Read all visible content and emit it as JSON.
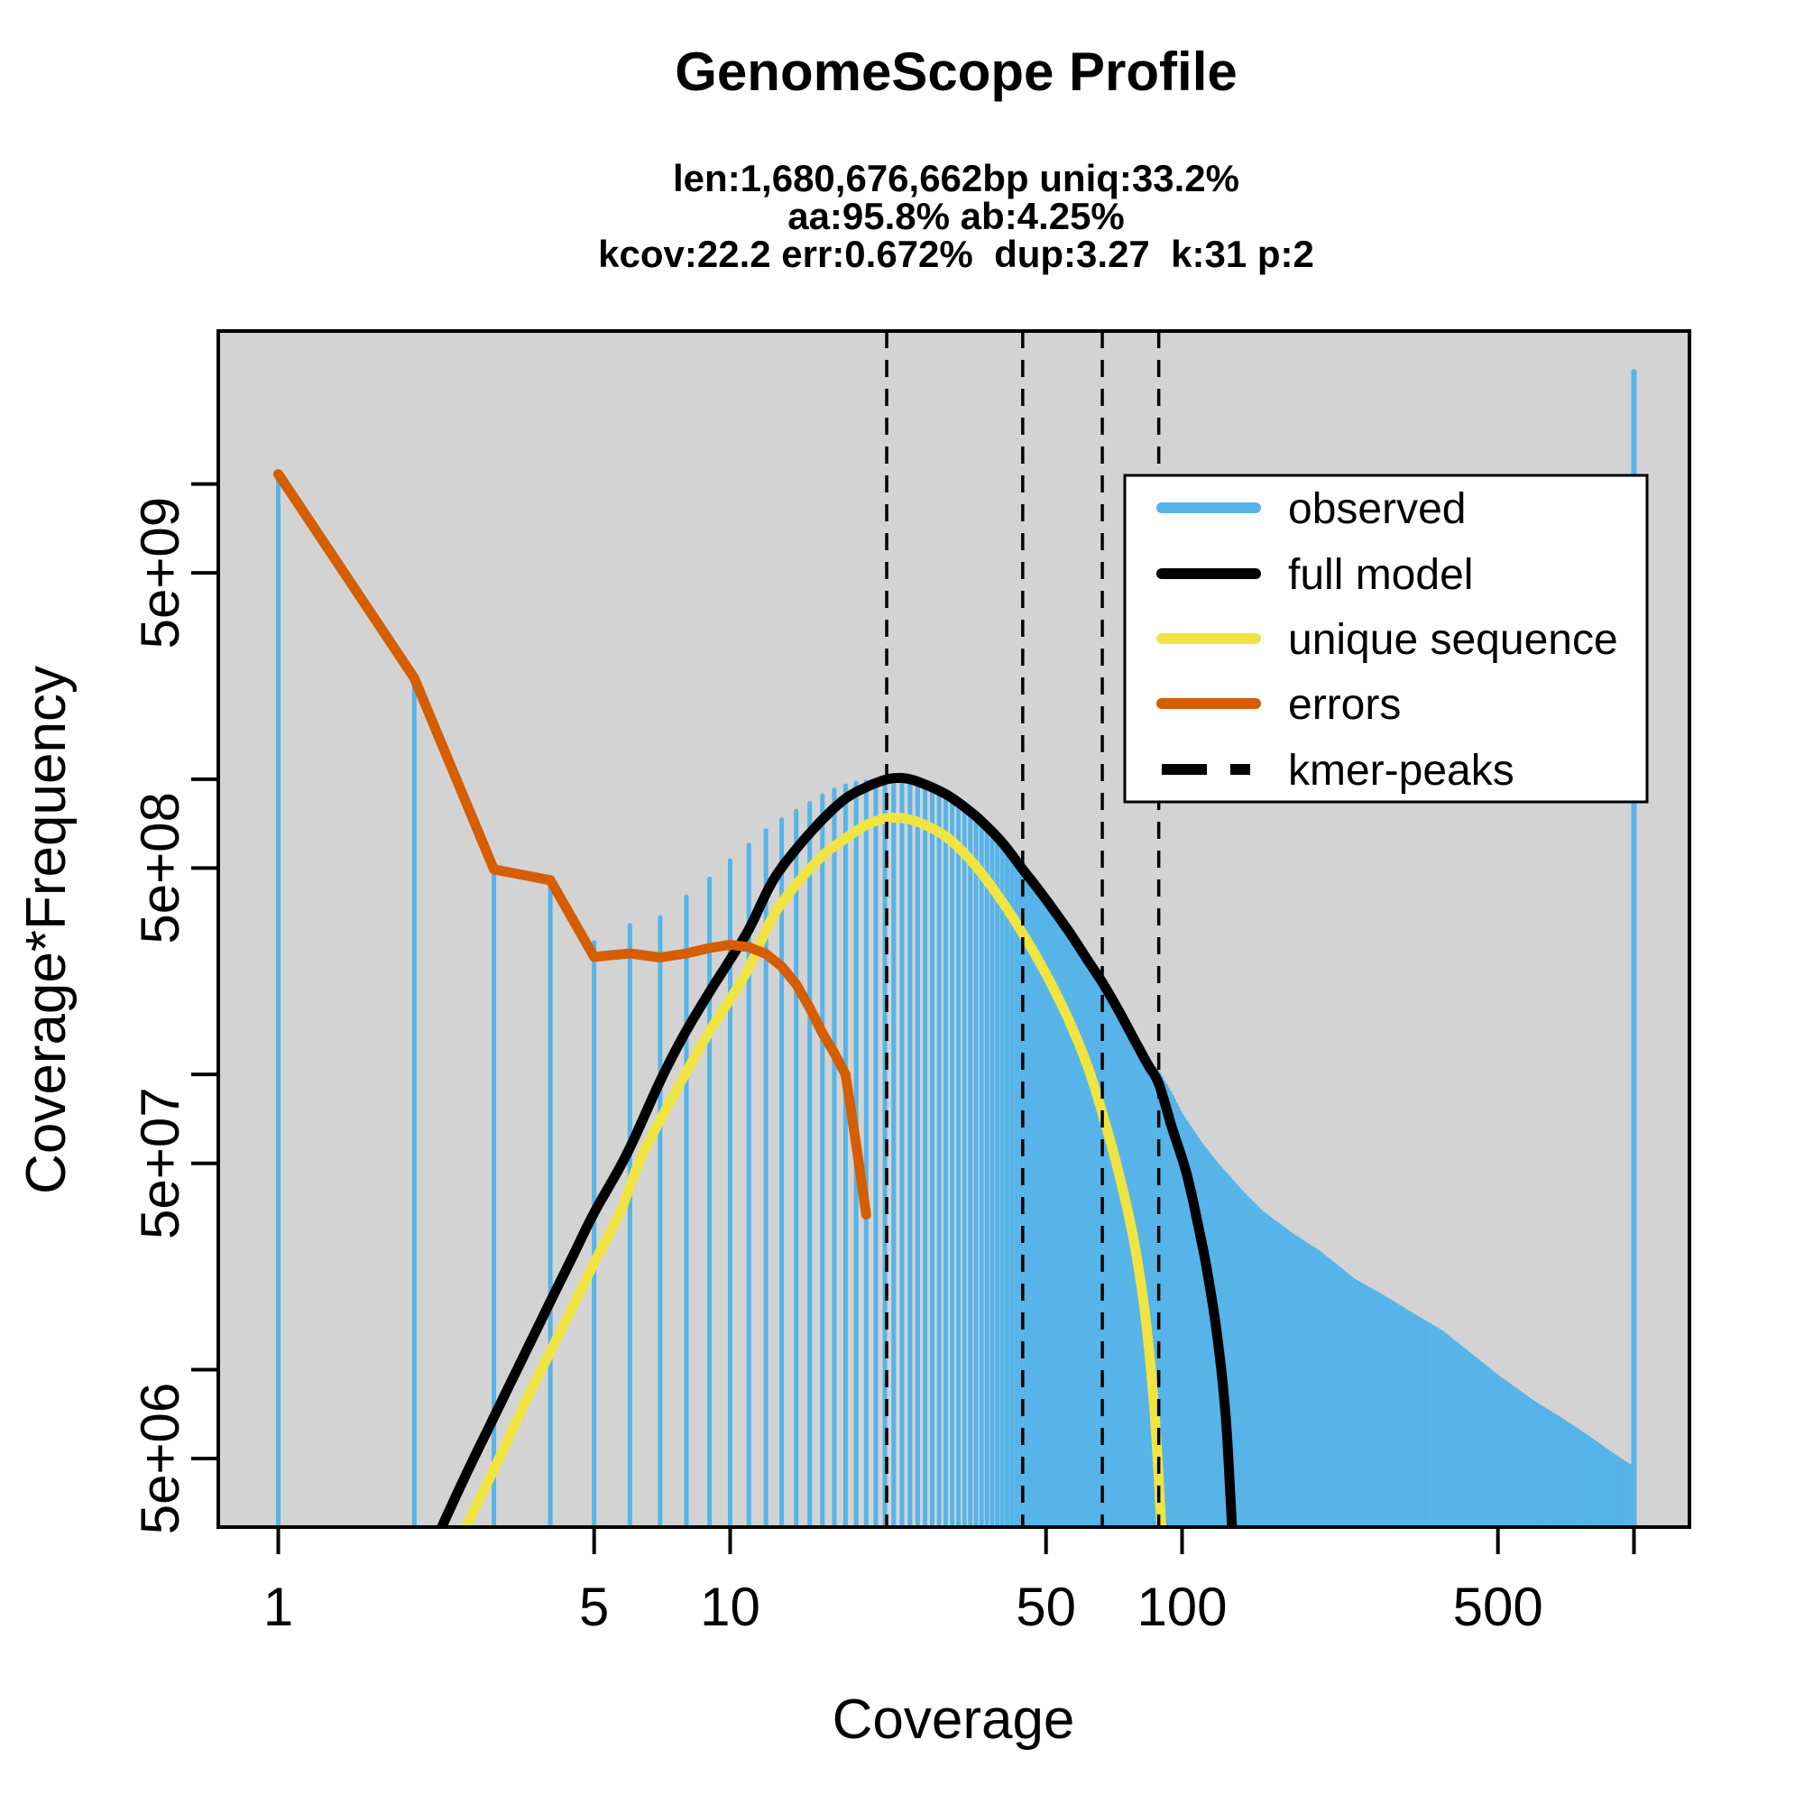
{
  "title": "GenomeScope Profile",
  "subtitle_lines": [
    "len:1,680,676,662bp uniq:33.2%",
    "aa:95.8% ab:4.25%",
    "kcov:22.2 err:0.672%  dup:3.27  k:31 p:2"
  ],
  "stats": {
    "len": "1,680,676,662bp",
    "uniq": "33.2%",
    "aa": "95.8%",
    "ab": "4.25%",
    "kcov": "22.2",
    "err": "0.672%",
    "dup": "3.27",
    "k": "31",
    "p": "2"
  },
  "colors": {
    "panel_background": "#D3D3D3",
    "page_background": "#FFFFFF",
    "observed": "#56B4E9",
    "full_model": "#000000",
    "unique_sequence": "#F0E442",
    "errors": "#D55E00",
    "kmer_peaks": "#000000",
    "axis": "#000000"
  },
  "chart_data": {
    "type": "bar",
    "title": "GenomeScope Profile",
    "xlabel": "Coverage",
    "ylabel": "Coverage*Frequency",
    "x_scale": "log",
    "y_scale": "log",
    "x_range": [
      0.73,
      1320
    ],
    "y_range": [
      2930000,
      33000000000
    ],
    "x_ticks": [
      1,
      5,
      10,
      50,
      100,
      500
    ],
    "x_ticks_unlabeled": [
      1000
    ],
    "y_ticks": [
      {
        "label": "5e+06",
        "value": 5000000
      },
      {
        "label": "5e+07",
        "value": 50000000
      },
      {
        "label": "5e+08",
        "value": 500000000
      },
      {
        "label": "5e+09",
        "value": 5000000000
      }
    ],
    "y_ticks_unlabeled": [
      10000000,
      100000000,
      1000000000,
      10000000000
    ],
    "grid": false,
    "legend_position": "top-right",
    "kmer_peaks_x": [
      22.2,
      44.4,
      66.6,
      88.8
    ],
    "max_bin": {
      "coverage": 1000,
      "value": 24000000000
    },
    "series": [
      {
        "name": "observed",
        "kind": "bars",
        "color": "#56B4E9",
        "points": [
          [
            1,
            10500000000
          ],
          [
            2,
            2100000000
          ],
          [
            3,
            480000000
          ],
          [
            4,
            460000000
          ],
          [
            5,
            280000000
          ],
          [
            6,
            320000000
          ],
          [
            7,
            340000000
          ],
          [
            8,
            400000000
          ],
          [
            9,
            460000000
          ],
          [
            10,
            530000000
          ],
          [
            11,
            600000000
          ],
          [
            12,
            670000000
          ],
          [
            13,
            730000000
          ],
          [
            14,
            780000000
          ],
          [
            15,
            830000000
          ],
          [
            16,
            880000000
          ],
          [
            17,
            920000000
          ],
          [
            18,
            950000000
          ],
          [
            19,
            970000000
          ],
          [
            20,
            980000000
          ],
          [
            21,
            990000000
          ],
          [
            22,
            1000000000
          ],
          [
            23,
            1000000000
          ],
          [
            24,
            995000000
          ],
          [
            25,
            990000000
          ],
          [
            26,
            980000000
          ],
          [
            28,
            940000000
          ],
          [
            30,
            890000000
          ],
          [
            33,
            800000000
          ],
          [
            36,
            720000000
          ],
          [
            40,
            610000000
          ],
          [
            44,
            500000000
          ],
          [
            48,
            425000000
          ],
          [
            52,
            360000000
          ],
          [
            57,
            295000000
          ],
          [
            62,
            242000000
          ],
          [
            67,
            202000000
          ],
          [
            72,
            170000000
          ],
          [
            78,
            137000000
          ],
          [
            84,
            112000000
          ],
          [
            89,
            100000000
          ],
          [
            95,
            84000000
          ],
          [
            100,
            72000000
          ],
          [
            110,
            58000000
          ],
          [
            120,
            49000000
          ],
          [
            135,
            40000000
          ],
          [
            150,
            34000000
          ],
          [
            175,
            28500000
          ],
          [
            200,
            25000000
          ],
          [
            240,
            20000000
          ],
          [
            280,
            17500000
          ],
          [
            330,
            15000000
          ],
          [
            374,
            13400000
          ],
          [
            430,
            11300000
          ],
          [
            500,
            9400000
          ],
          [
            600,
            7700000
          ],
          [
            695,
            6700000
          ],
          [
            800,
            5800000
          ],
          [
            900,
            5100000
          ],
          [
            999,
            4600000
          ]
        ]
      },
      {
        "name": "full model",
        "kind": "line",
        "color": "#000000",
        "points": [
          [
            2.3,
            2930000
          ],
          [
            2.6,
            4400000
          ],
          [
            3,
            6900000
          ],
          [
            3.5,
            11200000
          ],
          [
            4,
            17000000
          ],
          [
            4.5,
            24500000
          ],
          [
            5,
            34000000
          ],
          [
            5.9,
            53600000
          ],
          [
            7,
            95000000
          ],
          [
            7.9,
            136000000
          ],
          [
            9,
            190000000
          ],
          [
            10,
            245000000
          ],
          [
            11,
            310000000
          ],
          [
            12.4,
            450000000
          ],
          [
            14,
            580000000
          ],
          [
            16,
            730000000
          ],
          [
            18,
            860000000
          ],
          [
            20,
            940000000
          ],
          [
            22,
            995000000
          ],
          [
            23.5,
            1010000000
          ],
          [
            25,
            1000000000
          ],
          [
            27,
            960000000
          ],
          [
            30,
            890000000
          ],
          [
            33,
            805000000
          ],
          [
            36,
            720000000
          ],
          [
            40,
            610000000
          ],
          [
            44.4,
            495000000
          ],
          [
            48,
            425000000
          ],
          [
            52,
            360000000
          ],
          [
            57,
            295000000
          ],
          [
            62,
            242000000
          ],
          [
            66.6,
            205000000
          ],
          [
            72,
            167000000
          ],
          [
            78,
            133000000
          ],
          [
            84,
            108000000
          ],
          [
            88.8,
            93000000
          ],
          [
            95,
            66000000
          ],
          [
            102,
            47000000
          ],
          [
            108,
            32000000
          ],
          [
            114,
            21000000
          ],
          [
            120,
            12500000
          ],
          [
            125,
            6800000
          ],
          [
            129,
            2930000
          ]
        ]
      },
      {
        "name": "unique sequence",
        "kind": "line",
        "color": "#F0E442",
        "points": [
          [
            2.6,
            2930000
          ],
          [
            3,
            4600000
          ],
          [
            3.5,
            7600000
          ],
          [
            4,
            11500000
          ],
          [
            4.5,
            16500000
          ],
          [
            5,
            23000000
          ],
          [
            5.7,
            34000000
          ],
          [
            6.4,
            53600000
          ],
          [
            7.9,
            98500000
          ],
          [
            9,
            140000000
          ],
          [
            10,
            180000000
          ],
          [
            11,
            230000000
          ],
          [
            12.4,
            340000000
          ],
          [
            14,
            440000000
          ],
          [
            16,
            550000000
          ],
          [
            18,
            630000000
          ],
          [
            20,
            700000000
          ],
          [
            22,
            735000000
          ],
          [
            23.5,
            740000000
          ],
          [
            25,
            730000000
          ],
          [
            27,
            700000000
          ],
          [
            30,
            640000000
          ],
          [
            33,
            560000000
          ],
          [
            36,
            480000000
          ],
          [
            40,
            385000000
          ],
          [
            44.4,
            300000000
          ],
          [
            48,
            245000000
          ],
          [
            52,
            195000000
          ],
          [
            57,
            145000000
          ],
          [
            62,
            105000000
          ],
          [
            66.6,
            74000000
          ],
          [
            72,
            48000000
          ],
          [
            78,
            28000000
          ],
          [
            83,
            15000000
          ],
          [
            87,
            7000000
          ],
          [
            90,
            2930000
          ]
        ]
      },
      {
        "name": "errors",
        "kind": "line",
        "color": "#D55E00",
        "points": [
          [
            1,
            10800000000
          ],
          [
            2,
            2200000000
          ],
          [
            3,
            495000000
          ],
          [
            4,
            455000000
          ],
          [
            5,
            250000000
          ],
          [
            6,
            257000000
          ],
          [
            7,
            249000000
          ],
          [
            8,
            257000000
          ],
          [
            9,
            268000000
          ],
          [
            10,
            275000000
          ],
          [
            11,
            270000000
          ],
          [
            12,
            256000000
          ],
          [
            13,
            232000000
          ],
          [
            14,
            202000000
          ],
          [
            15,
            168000000
          ],
          [
            16,
            138000000
          ],
          [
            17,
            118000000
          ],
          [
            18,
            100000000
          ],
          [
            19,
            58000000
          ],
          [
            20,
            33500000
          ]
        ]
      },
      {
        "name": "kmer-peaks",
        "kind": "vlines",
        "color": "#000000",
        "style": "dashed",
        "x": [
          22.2,
          44.4,
          66.6,
          88.8
        ]
      }
    ],
    "legend": {
      "items": [
        {
          "label": "observed",
          "color": "#56B4E9",
          "dashed": false
        },
        {
          "label": "full model",
          "color": "#000000",
          "dashed": false
        },
        {
          "label": "unique sequence",
          "color": "#F0E442",
          "dashed": false
        },
        {
          "label": "errors",
          "color": "#D55E00",
          "dashed": false
        },
        {
          "label": "kmer-peaks",
          "color": "#000000",
          "dashed": true
        }
      ]
    }
  }
}
